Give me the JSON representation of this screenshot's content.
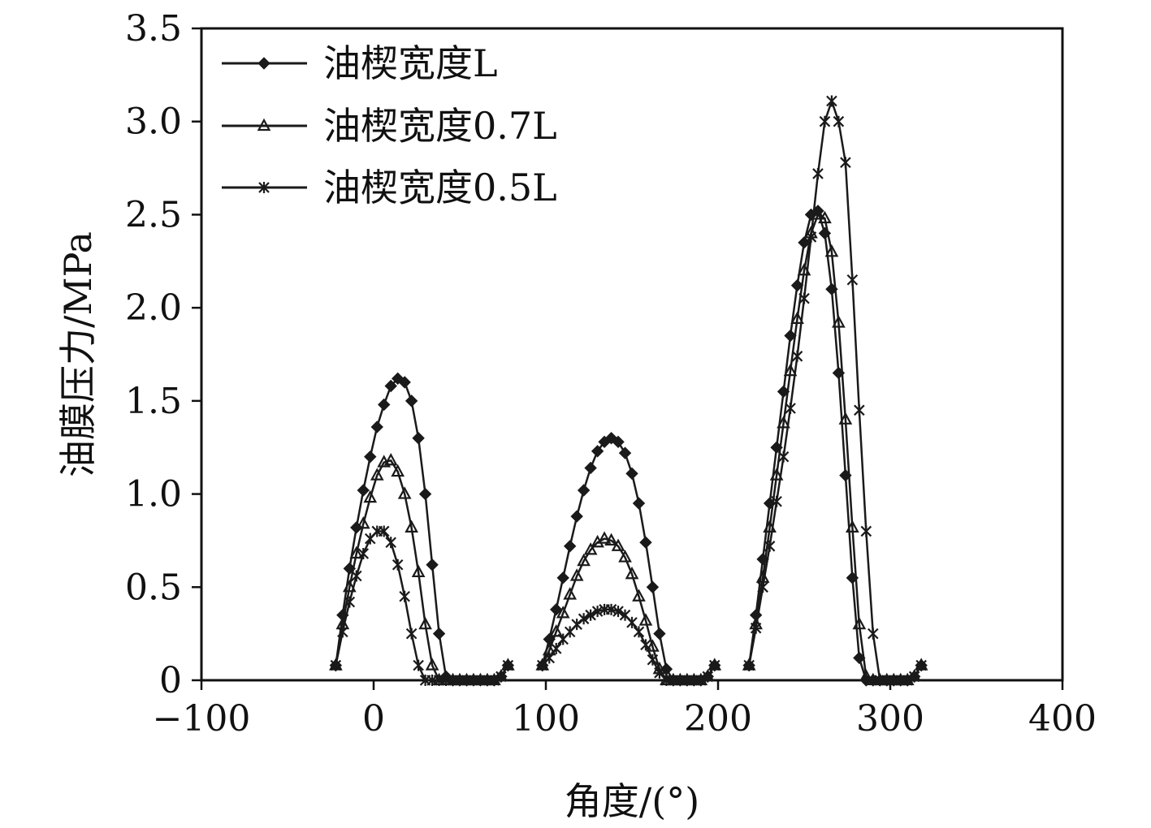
{
  "chart_data": {
    "type": "line",
    "title": "",
    "xlabel": "角度/(°)",
    "ylabel": "油膜压力/MPa",
    "xlim": [
      -100,
      400
    ],
    "ylim": [
      0,
      3.5
    ],
    "x_ticks": [
      -100,
      0,
      100,
      200,
      300,
      400
    ],
    "x_tick_labels": [
      "−100",
      "0",
      "100",
      "200",
      "300",
      "400"
    ],
    "y_ticks": [
      0,
      0.5,
      1.0,
      1.5,
      2.0,
      2.5,
      3.0,
      3.5
    ],
    "y_tick_labels": [
      "0",
      "0.5",
      "1.0",
      "1.5",
      "2.0",
      "2.5",
      "3.0",
      "3.5"
    ],
    "grid": false,
    "legend_position": "top-left",
    "line_color": "#1a1a1a",
    "series": [
      {
        "name": "油楔宽度L",
        "marker": "diamond",
        "segments": [
          {
            "x": [
              -22,
              -18,
              -14,
              -10,
              -6,
              -2,
              2,
              6,
              10,
              14,
              18,
              22,
              26,
              30,
              34,
              38,
              42,
              46,
              50,
              54,
              58,
              62,
              66,
              70,
              74,
              78
            ],
            "y": [
              0.08,
              0.35,
              0.6,
              0.82,
              1.02,
              1.2,
              1.36,
              1.48,
              1.58,
              1.62,
              1.6,
              1.5,
              1.3,
              1.0,
              0.62,
              0.25,
              0.02,
              0.0,
              0.0,
              0.0,
              0.0,
              0.0,
              0.0,
              0.0,
              0.02,
              0.08
            ]
          },
          {
            "x": [
              98,
              102,
              106,
              110,
              114,
              118,
              122,
              126,
              130,
              134,
              138,
              142,
              146,
              150,
              154,
              158,
              162,
              166,
              170,
              174,
              178,
              182,
              186,
              190,
              194,
              198
            ],
            "y": [
              0.08,
              0.22,
              0.38,
              0.55,
              0.72,
              0.88,
              1.02,
              1.14,
              1.23,
              1.28,
              1.3,
              1.28,
              1.22,
              1.11,
              0.95,
              0.74,
              0.5,
              0.25,
              0.06,
              0.0,
              0.0,
              0.0,
              0.0,
              0.0,
              0.02,
              0.08
            ]
          },
          {
            "x": [
              218,
              222,
              226,
              230,
              234,
              238,
              242,
              246,
              250,
              254,
              258,
              262,
              266,
              270,
              274,
              278,
              282,
              286,
              290,
              294,
              298,
              302,
              306,
              310,
              314,
              318
            ],
            "y": [
              0.08,
              0.35,
              0.65,
              0.95,
              1.25,
              1.55,
              1.85,
              2.12,
              2.35,
              2.5,
              2.52,
              2.4,
              2.1,
              1.65,
              1.1,
              0.55,
              0.12,
              0.0,
              0.0,
              0.0,
              0.0,
              0.0,
              0.0,
              0.0,
              0.02,
              0.08
            ]
          }
        ]
      },
      {
        "name": "油楔宽度0.7L",
        "marker": "triangle",
        "segments": [
          {
            "x": [
              -22,
              -18,
              -14,
              -10,
              -6,
              -2,
              2,
              6,
              10,
              14,
              18,
              22,
              26,
              30,
              34,
              38,
              42,
              46,
              50,
              54,
              58,
              62,
              66,
              70,
              74,
              78
            ],
            "y": [
              0.08,
              0.3,
              0.5,
              0.68,
              0.84,
              0.98,
              1.1,
              1.17,
              1.18,
              1.12,
              1.0,
              0.82,
              0.58,
              0.3,
              0.08,
              0.0,
              0.0,
              0.0,
              0.0,
              0.0,
              0.0,
              0.0,
              0.0,
              0.0,
              0.02,
              0.08
            ]
          },
          {
            "x": [
              98,
              102,
              106,
              110,
              114,
              118,
              122,
              126,
              130,
              134,
              138,
              142,
              146,
              150,
              154,
              158,
              162,
              166,
              170,
              174,
              178,
              182,
              186,
              190,
              194,
              198
            ],
            "y": [
              0.08,
              0.16,
              0.26,
              0.36,
              0.46,
              0.56,
              0.64,
              0.7,
              0.74,
              0.76,
              0.75,
              0.72,
              0.66,
              0.57,
              0.45,
              0.32,
              0.18,
              0.06,
              0.0,
              0.0,
              0.0,
              0.0,
              0.0,
              0.0,
              0.02,
              0.08
            ]
          },
          {
            "x": [
              218,
              222,
              226,
              230,
              234,
              238,
              242,
              246,
              250,
              254,
              258,
              262,
              266,
              270,
              274,
              278,
              282,
              286,
              290,
              294,
              298,
              302,
              306,
              310,
              314,
              318
            ],
            "y": [
              0.08,
              0.3,
              0.55,
              0.82,
              1.1,
              1.38,
              1.66,
              1.94,
              2.2,
              2.4,
              2.5,
              2.48,
              2.3,
              1.92,
              1.4,
              0.82,
              0.3,
              0.02,
              0.0,
              0.0,
              0.0,
              0.0,
              0.0,
              0.0,
              0.02,
              0.08
            ]
          }
        ]
      },
      {
        "name": "油楔宽度0.5L",
        "marker": "cross",
        "segments": [
          {
            "x": [
              -22,
              -18,
              -14,
              -10,
              -6,
              -2,
              2,
              6,
              10,
              14,
              18,
              22,
              26,
              30,
              34,
              38,
              42,
              46,
              50,
              54,
              58,
              62,
              66,
              70,
              74,
              78
            ],
            "y": [
              0.08,
              0.26,
              0.42,
              0.56,
              0.68,
              0.76,
              0.8,
              0.8,
              0.74,
              0.62,
              0.45,
              0.25,
              0.08,
              0.0,
              0.0,
              0.0,
              0.0,
              0.0,
              0.0,
              0.0,
              0.0,
              0.0,
              0.0,
              0.0,
              0.02,
              0.08
            ]
          },
          {
            "x": [
              98,
              102,
              106,
              110,
              114,
              118,
              122,
              126,
              130,
              134,
              138,
              142,
              146,
              150,
              154,
              158,
              162,
              166,
              170,
              174,
              178,
              182,
              186,
              190,
              194,
              198
            ],
            "y": [
              0.08,
              0.12,
              0.17,
              0.22,
              0.26,
              0.3,
              0.33,
              0.35,
              0.37,
              0.38,
              0.38,
              0.37,
              0.35,
              0.31,
              0.26,
              0.19,
              0.11,
              0.04,
              0.0,
              0.0,
              0.0,
              0.0,
              0.0,
              0.0,
              0.02,
              0.08
            ]
          },
          {
            "x": [
              218,
              222,
              226,
              230,
              234,
              238,
              242,
              246,
              250,
              254,
              258,
              262,
              266,
              270,
              274,
              278,
              282,
              286,
              290,
              294,
              298,
              302,
              306,
              310,
              314,
              318
            ],
            "y": [
              0.08,
              0.28,
              0.5,
              0.72,
              0.96,
              1.2,
              1.46,
              1.74,
              2.05,
              2.38,
              2.72,
              3.0,
              3.11,
              3.0,
              2.78,
              2.15,
              1.45,
              0.8,
              0.25,
              0.0,
              0.0,
              0.0,
              0.0,
              0.0,
              0.02,
              0.08
            ]
          }
        ]
      }
    ]
  }
}
